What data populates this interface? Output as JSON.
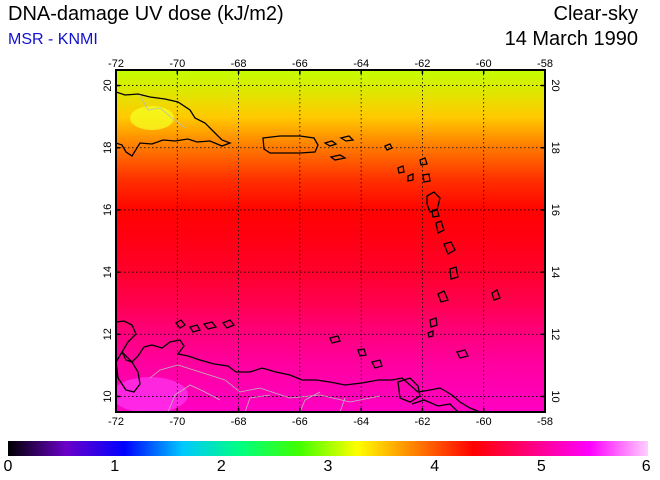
{
  "header": {
    "title": "DNA-damage UV dose (kJ/m2)",
    "source": "MSR - KNMI",
    "sky": "Clear-sky",
    "date": "14 March 1990"
  },
  "map": {
    "lon_range": [
      -72,
      -58
    ],
    "lat_range": [
      9.5,
      20.5
    ],
    "lon_ticks": [
      "-72",
      "-70",
      "-68",
      "-66",
      "-64",
      "-62",
      "-60",
      "-58"
    ],
    "lat_ticks": [
      "20",
      "18",
      "16",
      "14",
      "12",
      "10"
    ],
    "gridlines": true
  },
  "colorbar": {
    "min": 0,
    "max": 6,
    "labels": [
      "0",
      "1",
      "2",
      "3",
      "4",
      "5",
      "6"
    ],
    "colors": [
      "#000000",
      "#6a00c8",
      "#0000ff",
      "#00c8ff",
      "#00ff80",
      "#40ff00",
      "#ffff00",
      "#ff8000",
      "#ff0000",
      "#ff0080",
      "#ff00ff",
      "#ffd0ff"
    ]
  },
  "field": {
    "latitudes": [
      20.5,
      19,
      18,
      17,
      16,
      15,
      14,
      13,
      12,
      11,
      10,
      9.5
    ],
    "values": [
      3.1,
      3.5,
      3.85,
      4.15,
      4.35,
      4.45,
      4.55,
      4.7,
      4.9,
      5.05,
      5.15,
      5.2
    ]
  }
}
